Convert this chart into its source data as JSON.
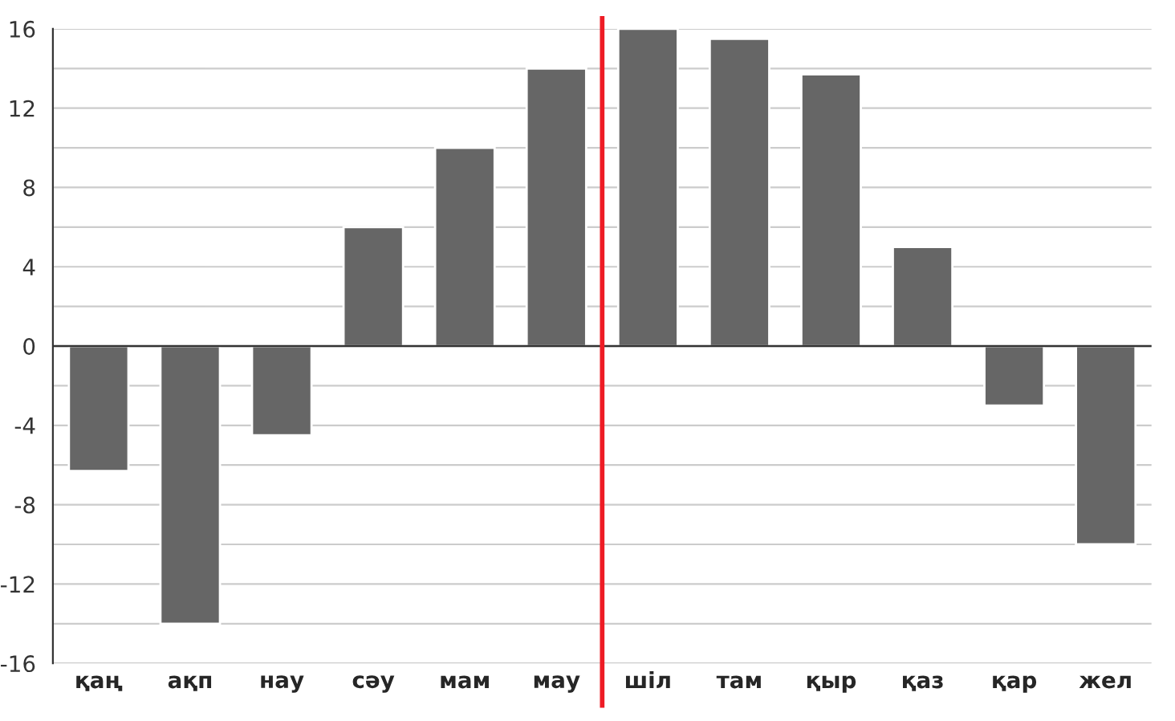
{
  "chart_data": {
    "type": "bar",
    "categories": [
      "қаң",
      "ақп",
      "нау",
      "сәу",
      "мам",
      "мау",
      "шіл",
      "там",
      "қыр",
      "қаз",
      "қар",
      "жел"
    ],
    "values": [
      -6.3,
      -14,
      -4.5,
      6,
      10,
      14,
      16,
      15.5,
      13.7,
      5,
      -3,
      -10
    ],
    "color": "#666666",
    "ylim": [
      -16,
      16
    ],
    "yticks": [
      -16,
      {
        "value": -14,
        "label": null
      },
      -12,
      {
        "value": -10,
        "label": null
      },
      -8,
      {
        "value": -6,
        "label": null
      },
      -4,
      {
        "value": -2,
        "label": null
      },
      0,
      {
        "value": 2,
        "label": null
      },
      4,
      {
        "value": 6,
        "label": null
      },
      8,
      {
        "value": 10,
        "label": null
      },
      12,
      {
        "value": 14,
        "label": null
      },
      16
    ],
    "grid": "y"
  }
}
